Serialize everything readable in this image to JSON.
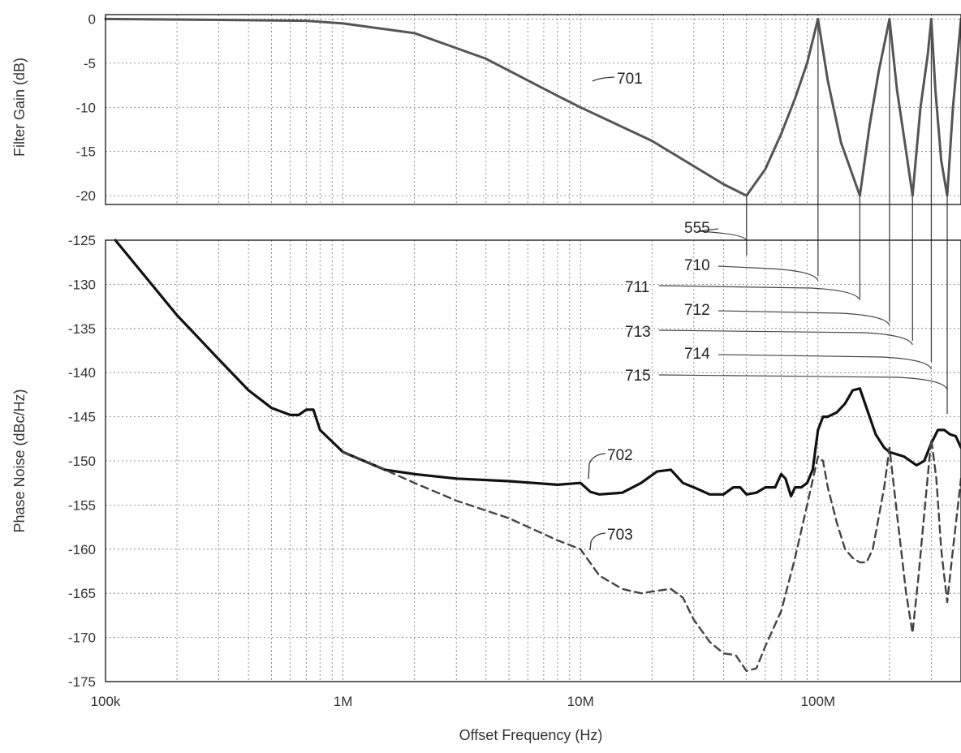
{
  "chart_data": [
    {
      "type": "line",
      "xscale": "log",
      "xlim": [
        100000,
        400000000
      ],
      "ylim": [
        -21,
        0.5
      ],
      "ylabel": "Filter Gain (dB)",
      "yticks": [
        "0",
        "-5",
        "-10",
        "-15",
        "-20"
      ],
      "ytick_values": [
        0,
        -5,
        -10,
        -15,
        -20
      ],
      "grid": true,
      "series": [
        {
          "name": "701",
          "style": "solid",
          "color": "#555555",
          "x": [
            100000,
            300000,
            700000,
            1000000,
            2000000,
            4000000,
            8000000,
            10000000,
            20000000,
            40000000,
            50000000,
            60000000,
            70000000,
            80000000,
            90000000,
            100000000,
            110000000,
            125000000,
            150000000,
            165000000,
            180000000,
            200000000,
            215000000,
            235000000,
            250000000,
            270000000,
            290000000,
            300000000,
            312000000,
            330000000,
            350000000,
            370000000,
            400000000
          ],
          "y": [
            0,
            -0.1,
            -0.2,
            -0.5,
            -1.6,
            -4.5,
            -8.7,
            -10.0,
            -13.8,
            -18.7,
            -20.0,
            -17.0,
            -13.0,
            -9.0,
            -5.0,
            0.0,
            -7.0,
            -14.0,
            -20.0,
            -12.0,
            -6.0,
            0.0,
            -8.0,
            -15.0,
            -20.0,
            -10.0,
            -4.0,
            0.0,
            -8.0,
            -16.0,
            -20.0,
            -10.0,
            0.0
          ]
        }
      ]
    },
    {
      "type": "line",
      "xscale": "log",
      "xlim": [
        100000,
        400000000
      ],
      "ylim": [
        -175,
        -125
      ],
      "xlabel": "Offset Frequency (Hz)",
      "ylabel": "Phase Noise (dBc/Hz)",
      "xticks": [
        "100k",
        "1M",
        "10M",
        "100M"
      ],
      "xtick_values": [
        100000,
        1000000,
        10000000,
        100000000
      ],
      "yticks": [
        "-125",
        "-130",
        "-135",
        "-140",
        "-145",
        "-150",
        "-155",
        "-160",
        "-165",
        "-170",
        "-175"
      ],
      "ytick_values": [
        -125,
        -130,
        -135,
        -140,
        -145,
        -150,
        -155,
        -160,
        -165,
        -170,
        -175
      ],
      "grid": true,
      "series": [
        {
          "name": "702",
          "style": "solid",
          "color": "#111111",
          "x": [
            110000,
            200000,
            300000,
            400000,
            500000,
            600000,
            650000,
            700000,
            750000,
            800000,
            1000000,
            1500000,
            2000000,
            3000000,
            5000000,
            8000000,
            10000000,
            11000000,
            12000000,
            15000000,
            18000000,
            21000000,
            24000000,
            27000000,
            30000000,
            35000000,
            40000000,
            44000000,
            47000000,
            50000000,
            55000000,
            60000000,
            66000000,
            70000000,
            73000000,
            77000000,
            80000000,
            85000000,
            90000000,
            95000000,
            100000000,
            105000000,
            110000000,
            120000000,
            130000000,
            140000000,
            150000000,
            160000000,
            175000000,
            190000000,
            200000000,
            230000000,
            260000000,
            280000000,
            300000000,
            320000000,
            340000000,
            360000000,
            380000000,
            400000000
          ],
          "y": [
            -125,
            -133.5,
            -138.5,
            -142.0,
            -144.0,
            -144.8,
            -144.8,
            -144.2,
            -144.2,
            -146.5,
            -149.0,
            -151.0,
            -151.5,
            -152.0,
            -152.3,
            -152.7,
            -152.5,
            -153.5,
            -153.8,
            -153.6,
            -152.5,
            -151.2,
            -151.0,
            -152.5,
            -153.0,
            -153.8,
            -153.8,
            -153.0,
            -153.0,
            -153.8,
            -153.6,
            -153.0,
            -153.0,
            -151.5,
            -152.0,
            -154.0,
            -153.0,
            -153.0,
            -152.5,
            -151.0,
            -146.5,
            -145.0,
            -145.0,
            -144.5,
            -143.5,
            -142.0,
            -141.8,
            -144.0,
            -147.0,
            -148.5,
            -149.0,
            -149.5,
            -150.5,
            -150.0,
            -148.0,
            -146.5,
            -146.5,
            -147.0,
            -147.2,
            -148.5
          ]
        },
        {
          "name": "703",
          "style": "dashed",
          "color": "#444444",
          "x": [
            1000000,
            1500000,
            2000000,
            3000000,
            5000000,
            8000000,
            10000000,
            12000000,
            15000000,
            18000000,
            20000000,
            24000000,
            27000000,
            30000000,
            35000000,
            40000000,
            45000000,
            50000000,
            55000000,
            60000000,
            70000000,
            80000000,
            90000000,
            100000000,
            105000000,
            110000000,
            120000000,
            130000000,
            140000000,
            150000000,
            160000000,
            170000000,
            190000000,
            200000000,
            215000000,
            235000000,
            250000000,
            265000000,
            280000000,
            300000000,
            315000000,
            330000000,
            350000000,
            370000000,
            400000000
          ],
          "y": [
            -149.0,
            -151.0,
            -152.5,
            -154.5,
            -156.5,
            -159.0,
            -160.0,
            -163.0,
            -164.5,
            -165.0,
            -164.8,
            -164.5,
            -165.5,
            -168.0,
            -170.5,
            -171.8,
            -172.0,
            -173.8,
            -173.5,
            -171.0,
            -167.0,
            -161.0,
            -155.0,
            -149.5,
            -150.0,
            -153.0,
            -157.0,
            -160.0,
            -161.0,
            -161.5,
            -161.5,
            -160.0,
            -153.0,
            -148.5,
            -156.0,
            -165.0,
            -169.5,
            -163.0,
            -156.0,
            -147.5,
            -152.0,
            -160.0,
            -166.0,
            -160.0,
            -152.0
          ]
        }
      ]
    }
  ],
  "annotations": {
    "a701": "701",
    "a702": "702",
    "a703": "703",
    "a555": "555",
    "a710": "710",
    "a711": "711",
    "a712": "712",
    "a713": "713",
    "a714": "714",
    "a715": "715"
  }
}
